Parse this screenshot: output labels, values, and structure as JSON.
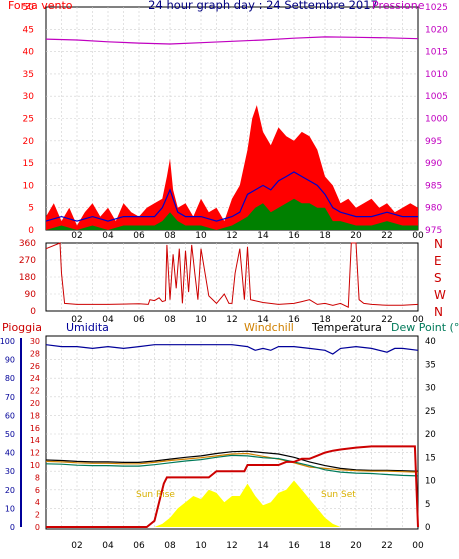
{
  "colors": {
    "wind_red": "#ff0000",
    "wind_blue": "#0000cc",
    "wind_green": "#008000",
    "pressure": "#c000c0",
    "dir": "#cc0000",
    "rain": "#cc0000",
    "humidity": "#000099",
    "windchill": "#d08000",
    "temperatura": "#000000",
    "dewpoint": "#007a5a",
    "solar": "#ffff00",
    "title": "#000080",
    "sun_text": "#d8b000"
  },
  "header": {
    "left_label": "Forza vento",
    "title": "24 hour graph day : 24 Settembre 2017",
    "right_label": "Pressione"
  },
  "mid_header": {
    "pioggia": "Pioggia",
    "umidita": "Umidita",
    "windchill": "Windchill",
    "temperatura": "Temperatura",
    "dewpoint": "Dew Point (°C"
  },
  "annotations": {
    "sun_rise": "Sun Rise",
    "sun_set": "Sun Set"
  },
  "chart_data": [
    {
      "type": "line",
      "x_ticks": [
        "02",
        "04",
        "06",
        "08",
        "10",
        "12",
        "14",
        "16",
        "18",
        "20",
        "22",
        "00"
      ],
      "y_left_ticks": [
        0,
        5,
        10,
        15,
        20,
        25,
        30,
        35,
        40,
        45,
        50
      ],
      "y_right_ticks": [
        975,
        980,
        985,
        990,
        995,
        1000,
        1005,
        1010,
        1015,
        1020,
        1025
      ],
      "ylim_left": [
        0,
        50
      ],
      "ylim_right": [
        975,
        1025
      ],
      "xlim": [
        0,
        24
      ],
      "grid": true,
      "series": [
        {
          "name": "Forza vento",
          "kind": "gust",
          "x": [
            0,
            0.5,
            1,
            1.5,
            2,
            2.5,
            3,
            3.5,
            4,
            4.5,
            5,
            5.5,
            6,
            6.5,
            7,
            7.5,
            7.8,
            8,
            8.2,
            8.5,
            9,
            9.5,
            10,
            10.5,
            11,
            11.5,
            12,
            12.5,
            13,
            13.3,
            13.6,
            14,
            14.5,
            15,
            15.5,
            16,
            16.5,
            17,
            17.5,
            18,
            18.5,
            19,
            19.5,
            20,
            20.5,
            21,
            21.5,
            22,
            22.5,
            23,
            23.5,
            24
          ],
          "values": [
            3,
            6,
            2,
            5,
            1,
            4,
            6,
            3,
            5,
            2,
            6,
            4,
            3,
            5,
            6,
            7,
            12,
            16,
            9,
            5,
            6,
            3,
            7,
            4,
            5,
            2,
            7,
            10,
            18,
            25,
            28,
            22,
            19,
            23,
            21,
            20,
            22,
            21,
            18,
            12,
            10,
            6,
            7,
            5,
            6,
            7,
            5,
            6,
            4,
            5,
            6,
            5
          ]
        },
        {
          "name": "Forza vento",
          "kind": "average",
          "x": [
            0,
            1,
            2,
            3,
            4,
            5,
            6,
            7,
            7.5,
            8,
            8.5,
            9,
            10,
            11,
            12,
            12.5,
            13,
            13.5,
            14,
            14.5,
            15,
            15.5,
            16,
            16.5,
            17,
            17.5,
            18,
            18.5,
            19,
            20,
            21,
            22,
            23,
            24
          ],
          "values": [
            2,
            3,
            2,
            3,
            2,
            3,
            3,
            3,
            5,
            9,
            4,
            3,
            3,
            2,
            3,
            4,
            8,
            9,
            10,
            9,
            11,
            12,
            13,
            12,
            11,
            10,
            8,
            5,
            4,
            3,
            3,
            4,
            3,
            3
          ]
        },
        {
          "name": "Forza vento",
          "kind": "minimum",
          "x": [
            0,
            1,
            2,
            3,
            4,
            5,
            6,
            7,
            7.5,
            8,
            8.5,
            9,
            10,
            11,
            12,
            12.5,
            13,
            13.5,
            14,
            14.5,
            15,
            15.5,
            16,
            16.5,
            17,
            17.5,
            18,
            18.5,
            19,
            20,
            21,
            22,
            23,
            24
          ],
          "values": [
            0,
            1,
            0,
            1,
            0,
            1,
            1,
            1,
            2,
            4,
            2,
            1,
            1,
            0,
            1,
            2,
            3,
            5,
            6,
            4,
            5,
            6,
            7,
            6,
            6,
            5,
            5,
            2,
            2,
            1,
            1,
            2,
            1,
            1
          ]
        },
        {
          "name": "Pressione",
          "axis": "right",
          "x": [
            0,
            2,
            4,
            6,
            8,
            10,
            12,
            14,
            16,
            18,
            20,
            22,
            24
          ],
          "values": [
            1017.8,
            1017.6,
            1017.2,
            1016.9,
            1016.7,
            1017.0,
            1017.3,
            1017.6,
            1018.0,
            1018.3,
            1018.2,
            1018.1,
            1017.9
          ]
        }
      ]
    },
    {
      "type": "line",
      "x_ticks": [
        "02",
        "04",
        "06",
        "08",
        "10",
        "12",
        "14",
        "16",
        "18",
        "20",
        "22",
        "00"
      ],
      "y_left_ticks": [
        0,
        90,
        180,
        270,
        360
      ],
      "y_right_labels": [
        "N",
        "W",
        "S",
        "E",
        "N"
      ],
      "ylim": [
        0,
        360
      ],
      "xlim": [
        0,
        24
      ],
      "grid": true,
      "series": [
        {
          "name": "wind direction",
          "x": [
            0,
            0.9,
            1.0,
            1.2,
            2,
            4,
            6,
            6.6,
            6.7,
            7,
            7.3,
            7.5,
            7.7,
            7.8,
            8,
            8.2,
            8.4,
            8.6,
            8.8,
            9,
            9.2,
            9.4,
            9.6,
            9.8,
            10,
            10.5,
            11,
            11.5,
            11.8,
            12,
            12.2,
            12.5,
            12.8,
            13,
            13.2,
            14,
            15,
            16,
            16.5,
            17,
            17.5,
            18,
            18.5,
            19,
            19.5,
            19.7,
            20,
            20.2,
            20.5,
            21,
            22,
            23,
            24
          ],
          "values": [
            330,
            360,
            200,
            40,
            35,
            35,
            38,
            35,
            60,
            55,
            70,
            50,
            55,
            350,
            60,
            300,
            120,
            330,
            40,
            320,
            100,
            350,
            200,
            60,
            330,
            80,
            40,
            90,
            40,
            40,
            200,
            330,
            60,
            340,
            60,
            45,
            35,
            40,
            50,
            60,
            35,
            40,
            30,
            40,
            20,
            360,
            360,
            60,
            40,
            35,
            30,
            30,
            35
          ]
        }
      ]
    },
    {
      "type": "line",
      "x_ticks": [
        "02",
        "04",
        "06",
        "08",
        "10",
        "12",
        "14",
        "16",
        "18",
        "20",
        "22",
        "00"
      ],
      "y_humidity_ticks": [
        0,
        10,
        20,
        30,
        40,
        50,
        60,
        70,
        80,
        90,
        100
      ],
      "y_rain_ticks": [
        0,
        2,
        4,
        6,
        8,
        10,
        12,
        14,
        16,
        18,
        20,
        22,
        24,
        26,
        28,
        30
      ],
      "y_temp_ticks": [
        0,
        5,
        10,
        15,
        20,
        25,
        30,
        35,
        40
      ],
      "xlim": [
        0,
        24
      ],
      "grid": true,
      "series": [
        {
          "name": "Umidita",
          "axis": "humidity",
          "x": [
            0,
            1,
            2,
            3,
            4,
            5,
            6,
            7,
            8,
            9,
            10,
            11,
            12,
            13,
            13.5,
            14,
            14.5,
            15,
            16,
            17,
            18,
            18.5,
            19,
            20,
            21,
            22,
            22.5,
            23,
            24
          ],
          "values": [
            98,
            97,
            97,
            96,
            97,
            96,
            97,
            98,
            98,
            98,
            98,
            98,
            98,
            97,
            95,
            96,
            95,
            97,
            97,
            96,
            95,
            93,
            96,
            97,
            96,
            94,
            96,
            96,
            95
          ]
        },
        {
          "name": "Temperatura",
          "axis": "temp",
          "x": [
            0,
            1,
            2,
            3,
            4,
            5,
            6,
            7,
            8,
            9,
            10,
            11,
            12,
            13,
            14,
            15,
            16,
            17,
            18,
            19,
            20,
            21,
            22,
            23,
            24
          ],
          "values": [
            14.4,
            14.3,
            14.1,
            14.0,
            14.0,
            13.9,
            13.9,
            14.2,
            14.6,
            15.0,
            15.3,
            15.8,
            16.2,
            16.3,
            16.0,
            15.7,
            15.0,
            14.0,
            13.2,
            12.6,
            12.3,
            12.2,
            12.2,
            12.1,
            12.0
          ]
        },
        {
          "name": "Windchill",
          "axis": "temp",
          "x": [
            0,
            1,
            2,
            3,
            4,
            5,
            6,
            7,
            8,
            9,
            10,
            11,
            12,
            13,
            14,
            15,
            16,
            17,
            18,
            19,
            20,
            21,
            22,
            23,
            24
          ],
          "values": [
            14.1,
            14.0,
            13.8,
            13.7,
            13.7,
            13.6,
            13.6,
            13.9,
            14.3,
            14.6,
            14.9,
            15.3,
            15.7,
            15.8,
            15.2,
            14.6,
            13.8,
            12.9,
            12.6,
            12.3,
            12.1,
            12.0,
            12.0,
            11.9,
            11.8
          ]
        },
        {
          "name": "Dew Point",
          "axis": "temp",
          "x": [
            0,
            1,
            2,
            3,
            4,
            5,
            6,
            7,
            8,
            9,
            10,
            11,
            12,
            13,
            14,
            15,
            16,
            17,
            18,
            19,
            20,
            21,
            22,
            23,
            24
          ],
          "values": [
            13.6,
            13.5,
            13.3,
            13.2,
            13.2,
            13.1,
            13.1,
            13.4,
            13.8,
            14.2,
            14.5,
            15.0,
            15.4,
            15.3,
            14.9,
            14.7,
            14.0,
            13.2,
            12.3,
            11.8,
            11.6,
            11.5,
            11.3,
            11.1,
            11.0
          ]
        },
        {
          "name": "Pioggia",
          "axis": "rain",
          "x": [
            0,
            6.5,
            7.0,
            7.3,
            7.6,
            7.8,
            8.2,
            9,
            10,
            10.5,
            11,
            12,
            12.8,
            13.0,
            13.5,
            14,
            15,
            15.5,
            16,
            16.5,
            17,
            17.5,
            18,
            18.5,
            19,
            20,
            21,
            22,
            23,
            23.8,
            24
          ],
          "values": [
            0,
            0,
            1,
            4,
            7,
            8,
            8,
            8,
            8,
            8,
            9,
            9,
            9,
            10,
            10,
            10,
            10,
            10.5,
            10.5,
            11,
            11,
            11.5,
            12,
            12.3,
            12.5,
            12.8,
            13,
            13,
            13,
            13,
            0
          ]
        },
        {
          "name": "solar",
          "axis": "rain",
          "x": [
            0,
            7.0,
            7.5,
            8,
            8.5,
            9,
            9.5,
            10,
            10.5,
            11,
            11.5,
            12,
            12.5,
            13,
            13.5,
            14,
            14.5,
            15,
            15.5,
            16,
            16.5,
            17,
            17.5,
            18,
            18.5,
            19,
            24
          ],
          "values": [
            0,
            0,
            0.5,
            1.5,
            3,
            4,
            5,
            4.5,
            6,
            5.5,
            4,
            5,
            5,
            7,
            5,
            3.5,
            4,
            5.5,
            6,
            7.5,
            6,
            4.5,
            3,
            1.5,
            0.5,
            0,
            0
          ]
        }
      ]
    }
  ]
}
